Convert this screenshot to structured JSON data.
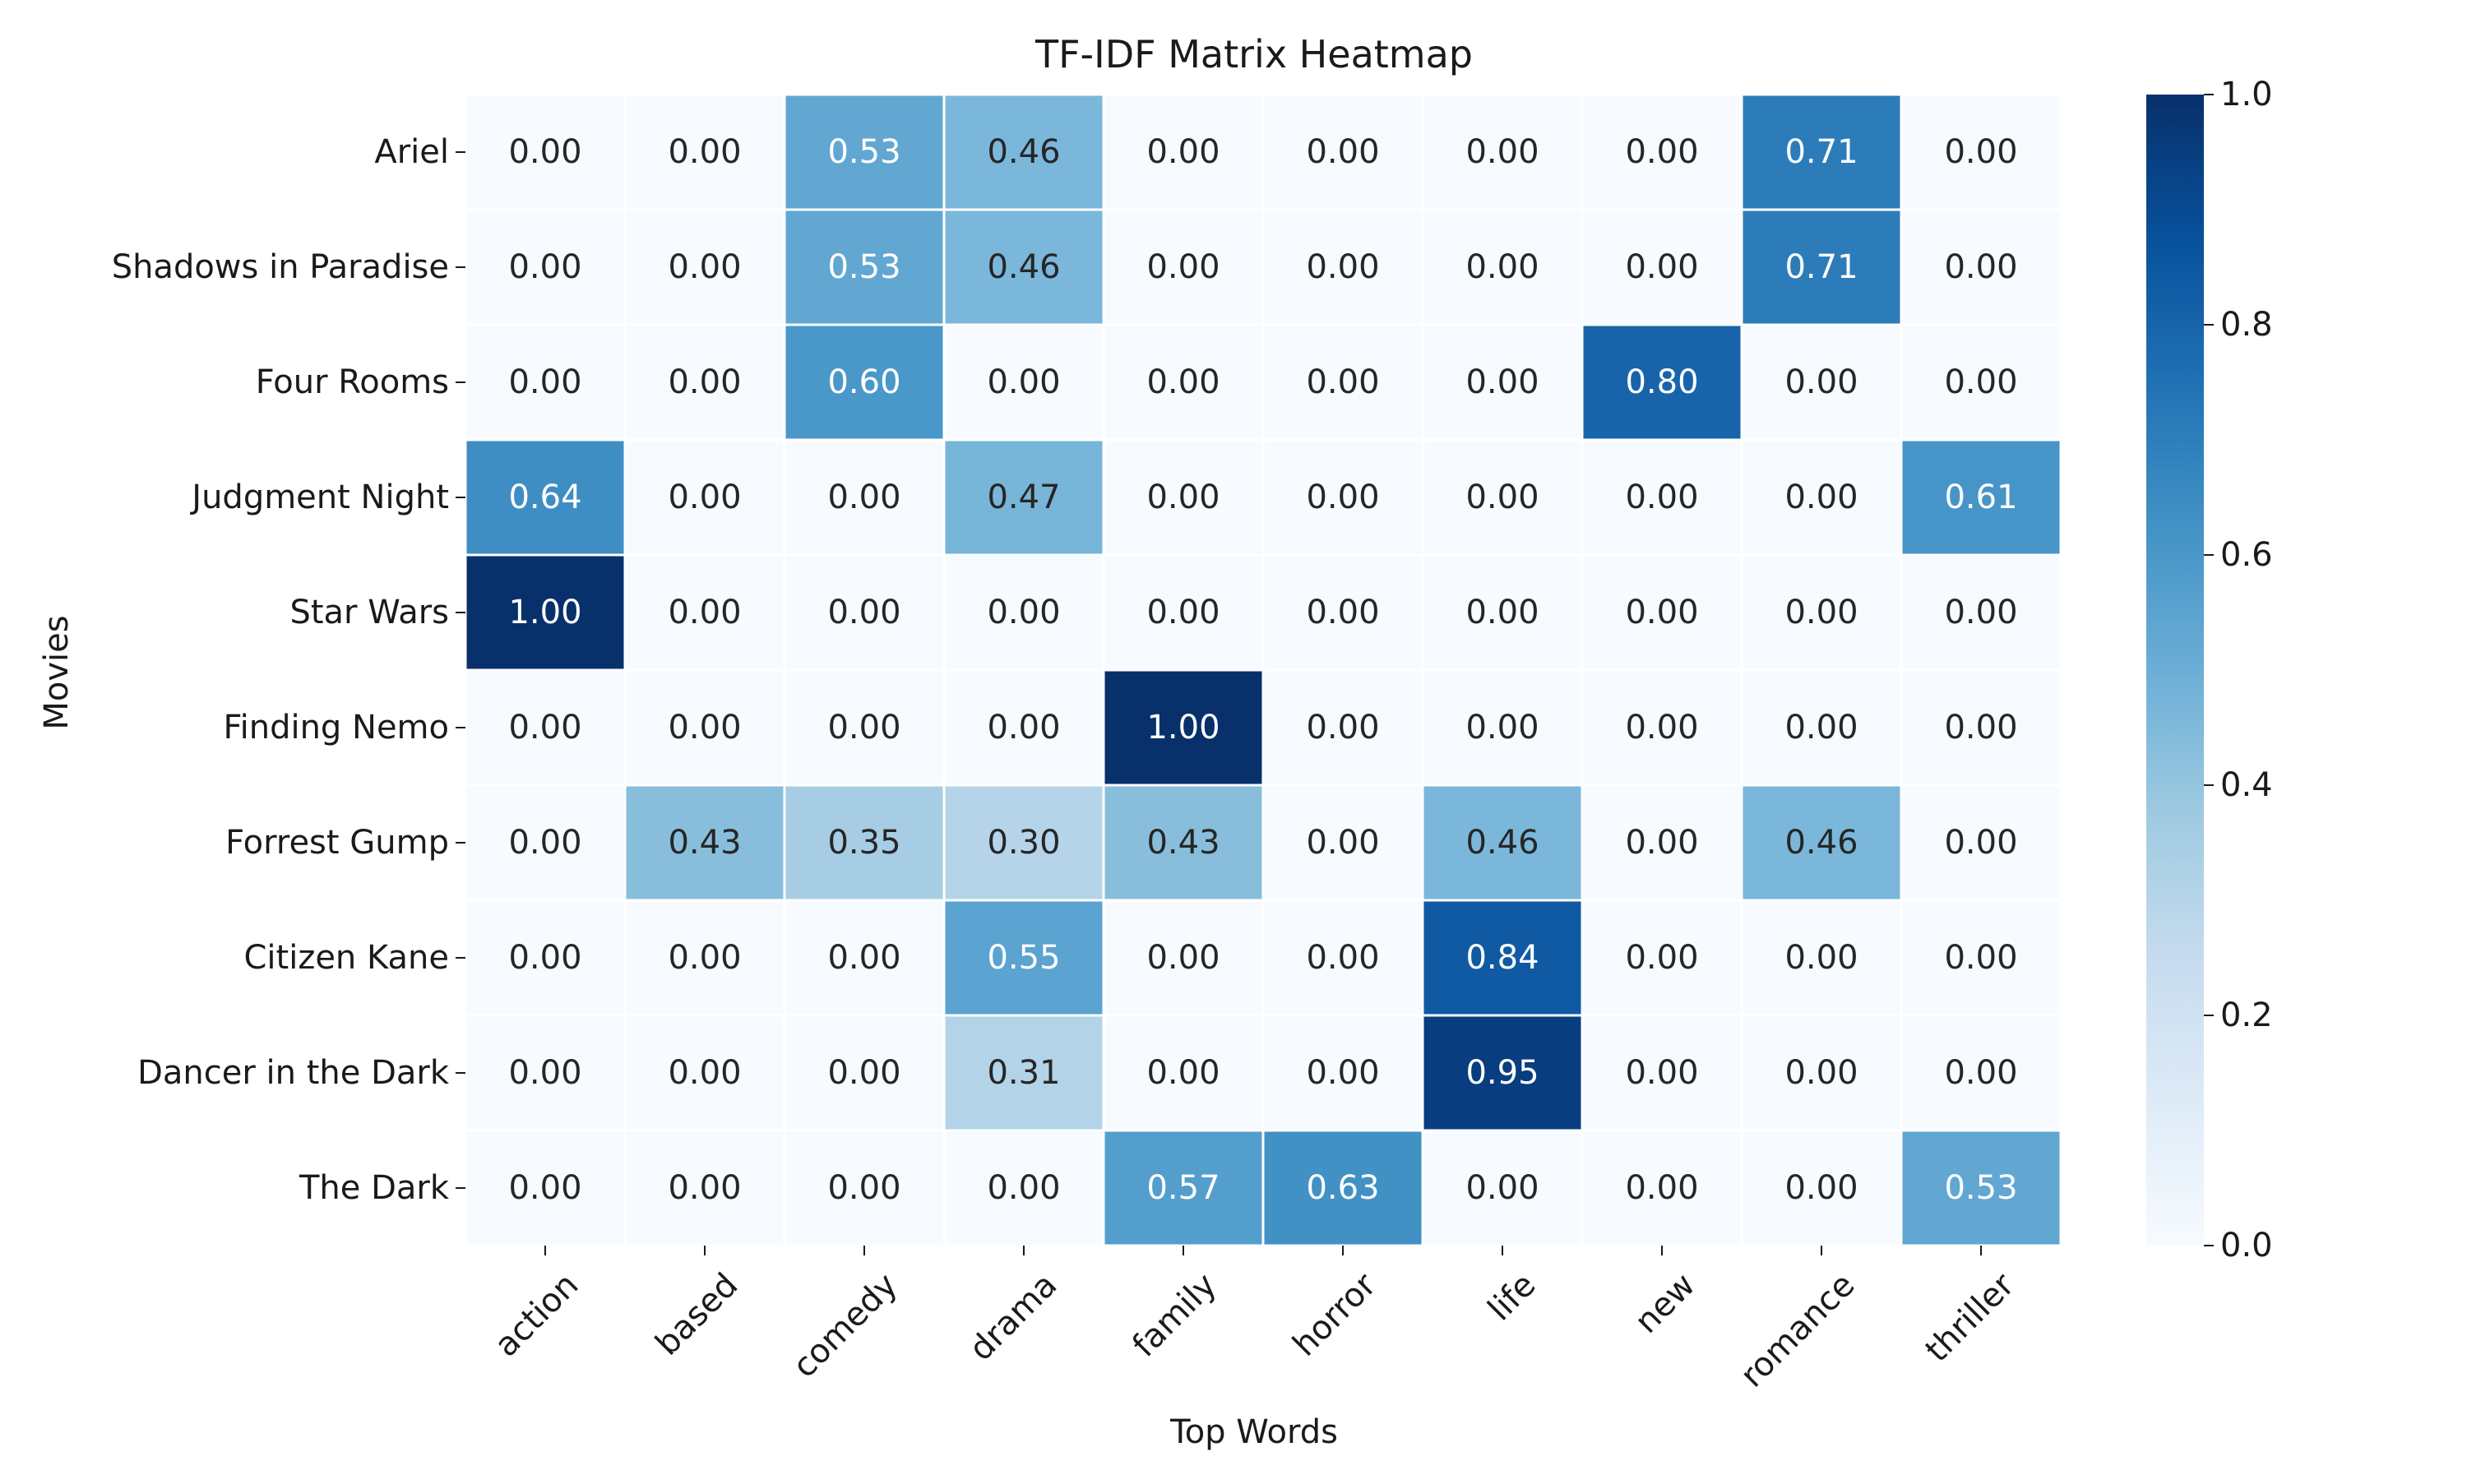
{
  "chart_data": {
    "type": "heatmap",
    "title": "TF-IDF Matrix Heatmap",
    "xlabel": "Top Words",
    "ylabel": "Movies",
    "x_categories": [
      "action",
      "based",
      "comedy",
      "drama",
      "family",
      "horror",
      "life",
      "new",
      "romance",
      "thriller"
    ],
    "y_categories": [
      "Ariel",
      "Shadows in Paradise",
      "Four Rooms",
      "Judgment Night",
      "Star Wars",
      "Finding Nemo",
      "Forrest Gump",
      "Citizen Kane",
      "Dancer in the Dark",
      "The Dark"
    ],
    "values": [
      [
        0.0,
        0.0,
        0.53,
        0.46,
        0.0,
        0.0,
        0.0,
        0.0,
        0.71,
        0.0
      ],
      [
        0.0,
        0.0,
        0.53,
        0.46,
        0.0,
        0.0,
        0.0,
        0.0,
        0.71,
        0.0
      ],
      [
        0.0,
        0.0,
        0.6,
        0.0,
        0.0,
        0.0,
        0.0,
        0.8,
        0.0,
        0.0
      ],
      [
        0.64,
        0.0,
        0.0,
        0.47,
        0.0,
        0.0,
        0.0,
        0.0,
        0.0,
        0.61
      ],
      [
        1.0,
        0.0,
        0.0,
        0.0,
        0.0,
        0.0,
        0.0,
        0.0,
        0.0,
        0.0
      ],
      [
        0.0,
        0.0,
        0.0,
        0.0,
        1.0,
        0.0,
        0.0,
        0.0,
        0.0,
        0.0
      ],
      [
        0.0,
        0.43,
        0.35,
        0.3,
        0.43,
        0.0,
        0.46,
        0.0,
        0.46,
        0.0
      ],
      [
        0.0,
        0.0,
        0.0,
        0.55,
        0.0,
        0.0,
        0.84,
        0.0,
        0.0,
        0.0
      ],
      [
        0.0,
        0.0,
        0.0,
        0.31,
        0.0,
        0.0,
        0.95,
        0.0,
        0.0,
        0.0
      ],
      [
        0.0,
        0.0,
        0.0,
        0.0,
        0.57,
        0.63,
        0.0,
        0.0,
        0.0,
        0.53
      ]
    ],
    "value_format": "0.00",
    "colormap": "Blues",
    "colorbar": {
      "range": [
        0.0,
        1.0
      ],
      "ticks": [
        0.0,
        0.2,
        0.4,
        0.6,
        0.8,
        1.0
      ],
      "tick_labels": [
        "0.0",
        "0.2",
        "0.4",
        "0.6",
        "0.8",
        "1.0"
      ]
    },
    "grid": false,
    "cell_border_color": "#ffffff",
    "colors": {
      "low": "#f7fbff",
      "high": "#08306b",
      "text_dark": "#262626",
      "text_light": "#ffffff"
    }
  }
}
